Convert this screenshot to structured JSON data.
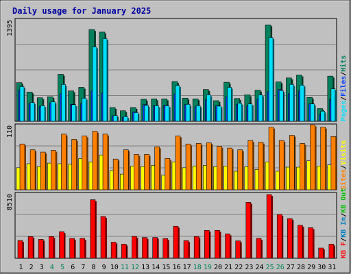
{
  "title": "Daily usage for January 2025",
  "colors": {
    "background": "#c0c0c0",
    "title": "#0000a0",
    "hits": "#00805c",
    "files": "#0040ff",
    "pages": "#00e0ff",
    "visits": "#ffff00",
    "sites": "#ff8000",
    "kb": "#ff0000",
    "kb_out": "#00c000",
    "kb_in": "#0080c0",
    "weekend_day": "#00805c",
    "weekday": "#000000"
  },
  "chart_data": [
    {
      "type": "bar",
      "name": "hits-files-pages",
      "ymax_label": "1395",
      "ylim": [
        0,
        1395
      ],
      "legend": [
        {
          "text": "Pages",
          "color_key": "pages"
        },
        {
          "text": "/",
          "color_key": "weekday"
        },
        {
          "text": "Files",
          "color_key": "files"
        },
        {
          "text": "/",
          "color_key": "weekday"
        },
        {
          "text": "Hits",
          "color_key": "hits"
        }
      ],
      "series": [
        {
          "name": "Hits",
          "values": [
            535,
            405,
            325,
            340,
            650,
            420,
            470,
            1270,
            1235,
            190,
            145,
            190,
            305,
            310,
            310,
            550,
            320,
            310,
            440,
            285,
            540,
            315,
            365,
            430,
            1335,
            545,
            600,
            640,
            330,
            175,
            625
          ]
        },
        {
          "name": "Files",
          "values": [
            430,
            245,
            205,
            255,
            380,
            235,
            250,
            420,
            390,
            75,
            55,
            130,
            230,
            215,
            220,
            380,
            230,
            200,
            300,
            215,
            340,
            235,
            215,
            310,
            410,
            440,
            380,
            420,
            240,
            90,
            300
          ]
        },
        {
          "name": "Pages",
          "values": [
            480,
            260,
            215,
            270,
            510,
            230,
            320,
            1030,
            1145,
            80,
            65,
            120,
            220,
            215,
            215,
            495,
            235,
            215,
            365,
            210,
            470,
            250,
            240,
            365,
            1160,
            425,
            510,
            500,
            240,
            140,
            450
          ]
        }
      ]
    },
    {
      "type": "bar",
      "name": "visits-sites",
      "ymax_label": "110",
      "ylim": [
        0,
        110
      ],
      "legend": [
        {
          "text": "Sites",
          "color_key": "sites"
        },
        {
          "text": "/",
          "color_key": "weekday"
        },
        {
          "text": "Visits",
          "color_key": "visits"
        }
      ],
      "series": [
        {
          "name": "Visits",
          "values": [
            38,
            45,
            40,
            46,
            45,
            44,
            54,
            48,
            60,
            33,
            27,
            41,
            40,
            42,
            25,
            48,
            38,
            41,
            42,
            40,
            41,
            32,
            40,
            35,
            48,
            32,
            39,
            39,
            50,
            41,
            43
          ]
        },
        {
          "name": "Sites",
          "values": [
            79,
            69,
            65,
            68,
            96,
            87,
            93,
            101,
            96,
            53,
            69,
            61,
            61,
            74,
            54,
            93,
            79,
            80,
            81,
            75,
            72,
            69,
            85,
            82,
            108,
            85,
            94,
            80,
            112,
            108,
            92
          ]
        }
      ]
    },
    {
      "type": "bar",
      "name": "kbytes",
      "ymax_label": "8510",
      "ylim": [
        0,
        8510
      ],
      "legend": [
        {
          "text": "KB F",
          "color_key": "kb"
        },
        {
          "text": "/",
          "color_key": "weekday"
        },
        {
          "text": "KB In",
          "color_key": "kb_in"
        },
        {
          "text": "/",
          "color_key": "weekday"
        },
        {
          "text": "KB Out",
          "color_key": "kb_out"
        }
      ],
      "series": [
        {
          "name": "KB F",
          "values": [
            2370,
            2900,
            2520,
            2900,
            3550,
            2650,
            2650,
            7820,
            5580,
            2150,
            1880,
            2920,
            2780,
            2780,
            2620,
            4280,
            2350,
            2910,
            3720,
            3720,
            3250,
            2320,
            7470,
            2650,
            8510,
            5850,
            5300,
            4400,
            4080,
            1370,
            1880
          ]
        }
      ]
    }
  ],
  "days": [
    {
      "label": "1",
      "weekend": false
    },
    {
      "label": "2",
      "weekend": false
    },
    {
      "label": "3",
      "weekend": false
    },
    {
      "label": "4",
      "weekend": true
    },
    {
      "label": "5",
      "weekend": true
    },
    {
      "label": "6",
      "weekend": false
    },
    {
      "label": "7",
      "weekend": false
    },
    {
      "label": "8",
      "weekend": false
    },
    {
      "label": "9",
      "weekend": false
    },
    {
      "label": "10",
      "weekend": false
    },
    {
      "label": "11",
      "weekend": true
    },
    {
      "label": "12",
      "weekend": true
    },
    {
      "label": "13",
      "weekend": false
    },
    {
      "label": "14",
      "weekend": false
    },
    {
      "label": "15",
      "weekend": false
    },
    {
      "label": "16",
      "weekend": false
    },
    {
      "label": "17",
      "weekend": false
    },
    {
      "label": "18",
      "weekend": true
    },
    {
      "label": "19",
      "weekend": true
    },
    {
      "label": "20",
      "weekend": false
    },
    {
      "label": "21",
      "weekend": false
    },
    {
      "label": "22",
      "weekend": false
    },
    {
      "label": "23",
      "weekend": false
    },
    {
      "label": "24",
      "weekend": false
    },
    {
      "label": "25",
      "weekend": true
    },
    {
      "label": "26",
      "weekend": true
    },
    {
      "label": "27",
      "weekend": false
    },
    {
      "label": "28",
      "weekend": false
    },
    {
      "label": "29",
      "weekend": false
    },
    {
      "label": "30",
      "weekend": false
    },
    {
      "label": "31",
      "weekend": false
    }
  ]
}
